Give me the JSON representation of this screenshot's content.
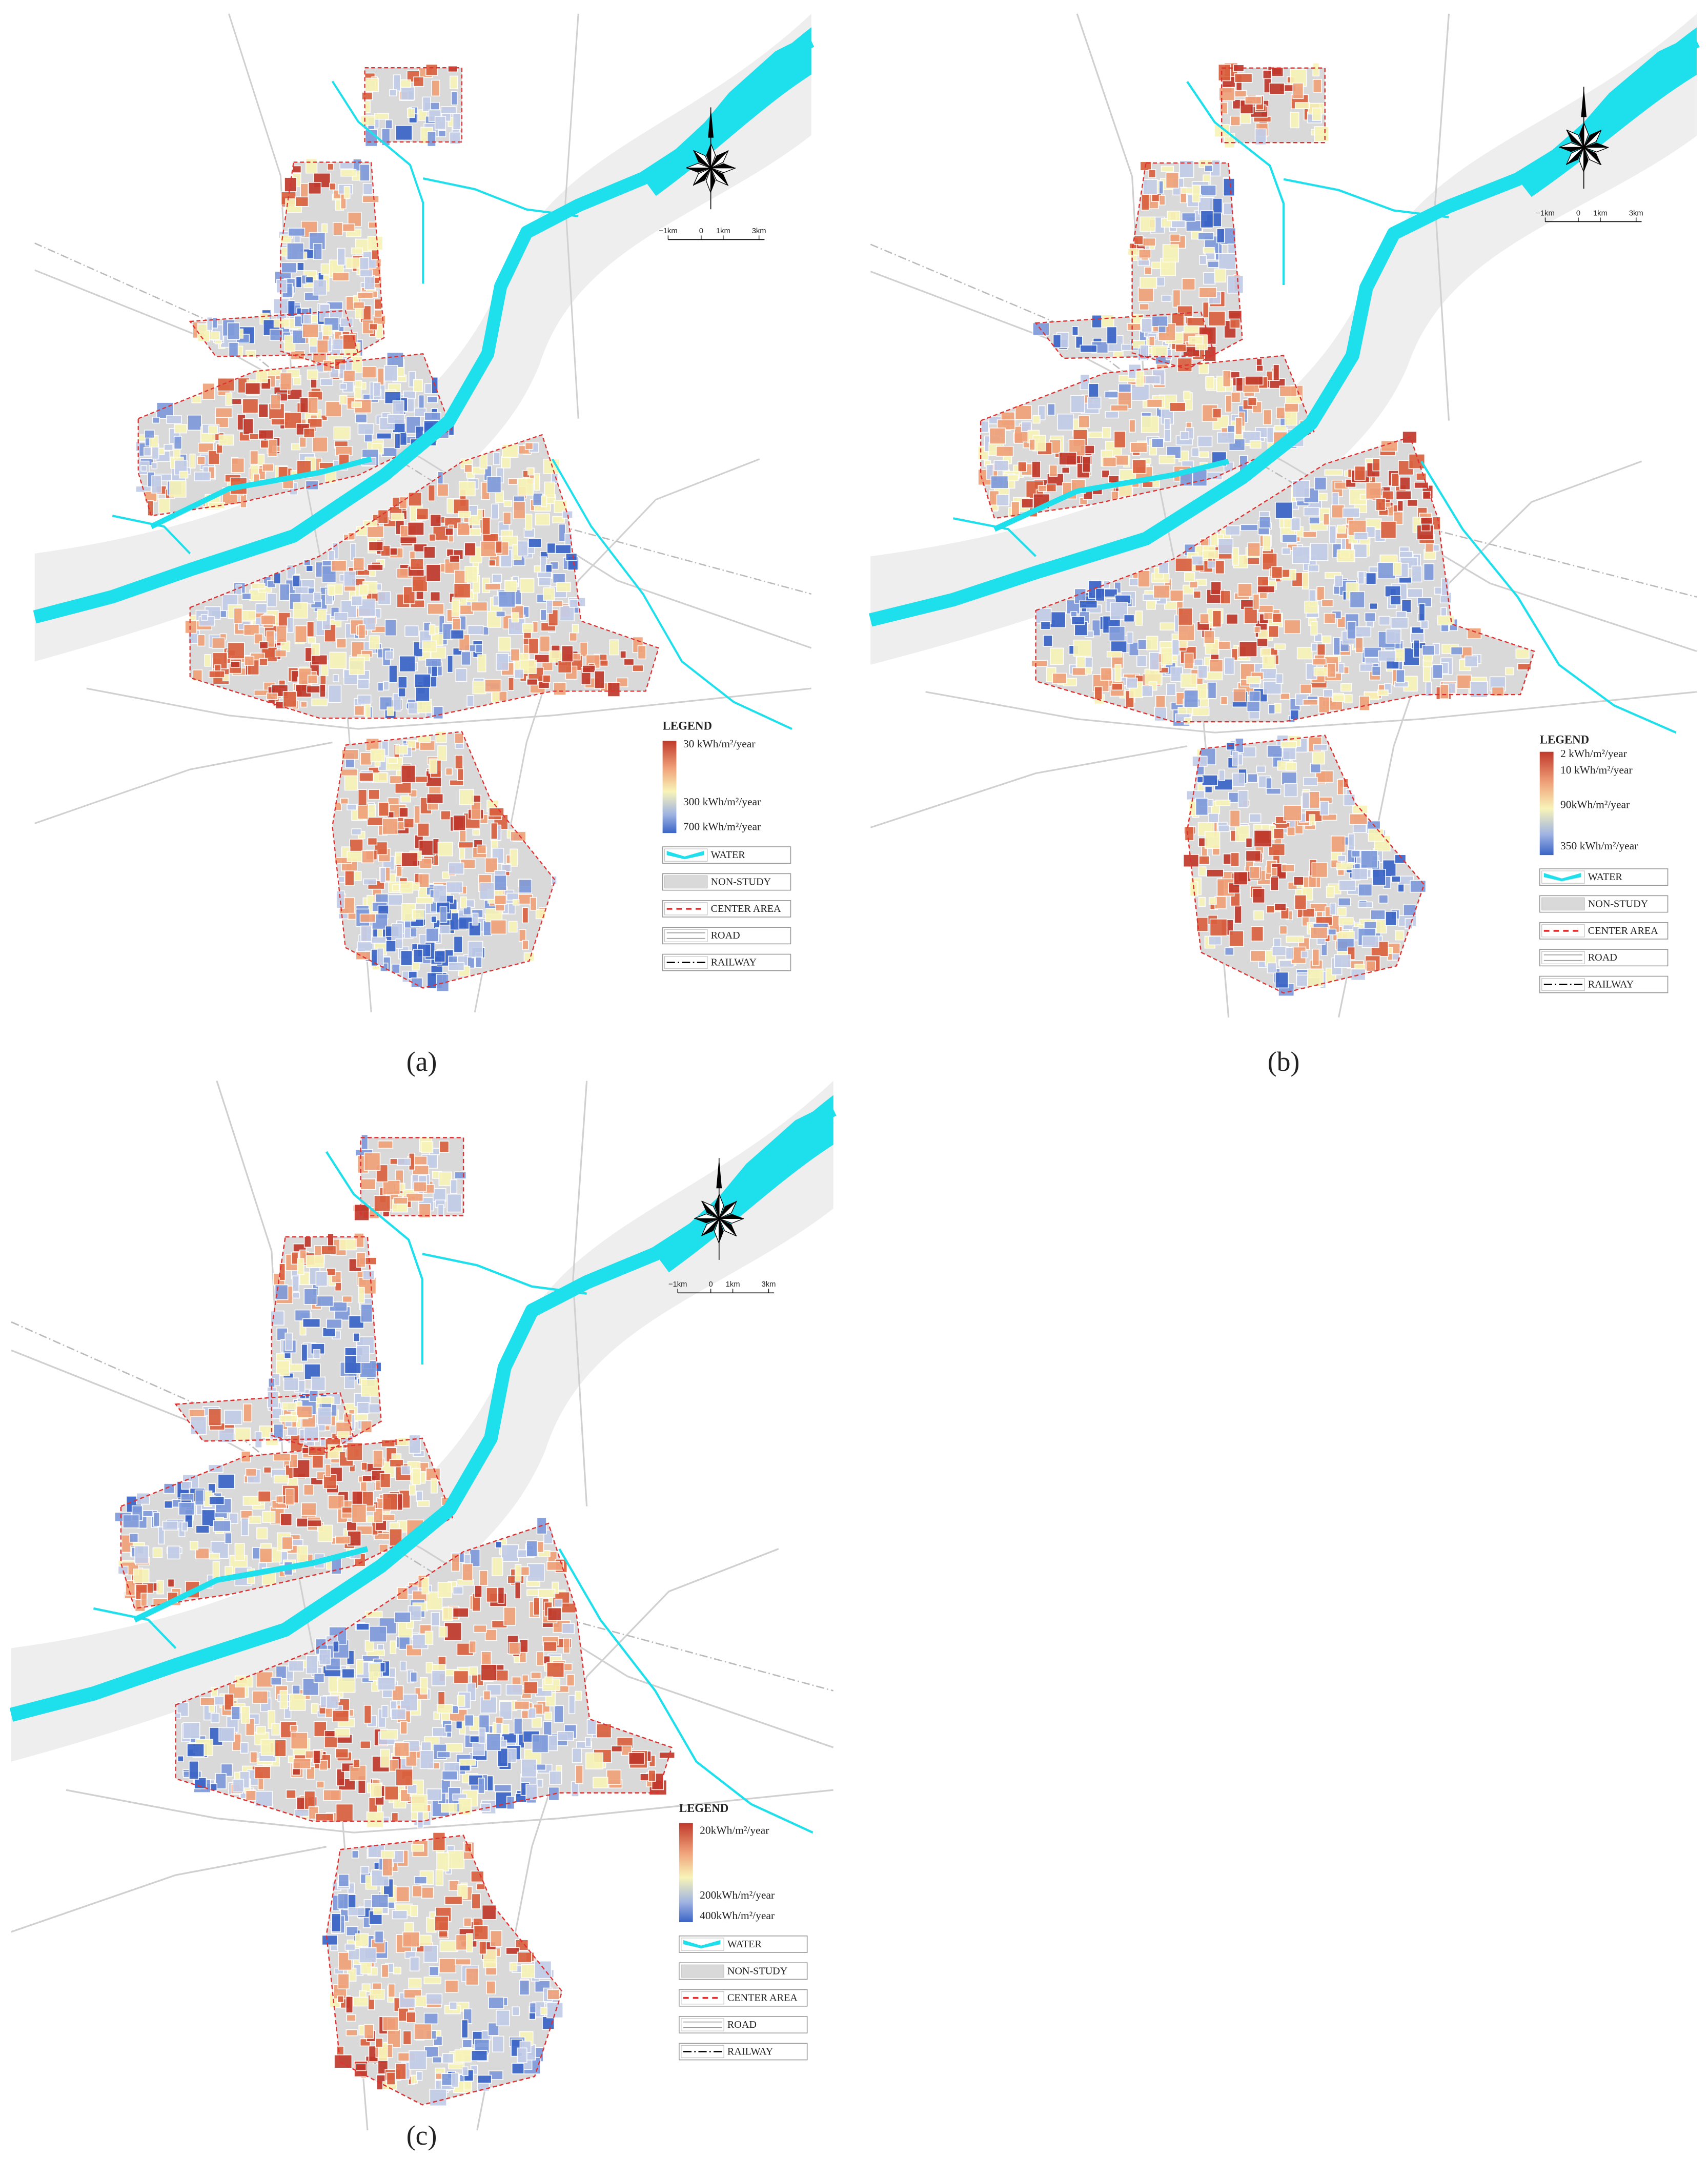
{
  "panels": [
    {
      "label": "(a)",
      "scale_bar": [
        "−1km",
        "0",
        "1km",
        "3km"
      ],
      "legend": {
        "title": "LEGEND",
        "ramp": [
          "30 kWh/m²/year",
          "300 kWh/m²/year",
          "700 kWh/m²/year"
        ],
        "items": [
          "WATER",
          "NON-STUDY",
          "CENTER AREA",
          "ROAD",
          "RAILWAY"
        ]
      }
    },
    {
      "label": "(b)",
      "scale_bar": [
        "−1km",
        "0",
        "1km",
        "3km"
      ],
      "legend": {
        "title": "LEGEND",
        "ramp": [
          "2 kWh/m²/year",
          "10 kWh/m²/year",
          "90kWh/m²/year",
          "350 kWh/m²/year"
        ],
        "items": [
          "WATER",
          "NON-STUDY",
          "CENTER AREA",
          "ROAD",
          "RAILWAY"
        ]
      }
    },
    {
      "label": "(c)",
      "scale_bar": [
        "−1km",
        "0",
        "1km",
        "3km"
      ],
      "legend": {
        "title": "LEGEND",
        "ramp": [
          "20kWh/m²/year",
          "200kWh/m²/year",
          "400kWh/m²/year"
        ],
        "items": [
          "WATER",
          "NON-STUDY",
          "CENTER AREA",
          "ROAD",
          "RAILWAY"
        ]
      }
    }
  ]
}
